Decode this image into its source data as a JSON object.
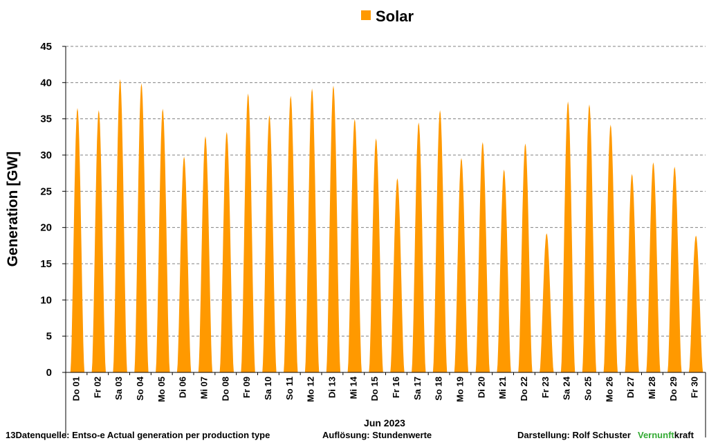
{
  "chart_data": {
    "type": "area",
    "legend": [
      {
        "name": "Solar",
        "color": "#FF9900"
      }
    ],
    "ylabel": "Generation  [GW]",
    "ylim": [
      0,
      45
    ],
    "yticks": [
      0,
      5,
      10,
      15,
      20,
      25,
      30,
      35,
      40,
      45
    ],
    "grid": "horizontal dashed",
    "month_label": "Jun 2023",
    "days": [
      "Do 01",
      "Fr 02",
      "Sa 03",
      "So 04",
      "Mo 05",
      "Di 06",
      "Mi 07",
      "Do 08",
      "Fr 09",
      "Sa 10",
      "So 11",
      "Mo 12",
      "Di 13",
      "Mi 14",
      "Do 15",
      "Fr 16",
      "Sa 17",
      "So 18",
      "Mo 19",
      "Di 20",
      "Mi 21",
      "Do 22",
      "Fr 23",
      "Sa 24",
      "So 25",
      "Mo 26",
      "Di 27",
      "Mi 28",
      "Do 29",
      "Fr 30"
    ],
    "series": [
      {
        "name": "Solar",
        "color": "#FF9900",
        "daily_peaks_gw": [
          36.5,
          36.2,
          40.5,
          39.9,
          36.4,
          29.8,
          32.6,
          33.2,
          38.5,
          35.5,
          38.2,
          39.2,
          39.6,
          35.0,
          32.3,
          26.8,
          34.5,
          36.2,
          29.6,
          31.8,
          28.0,
          31.6,
          19.2,
          37.4,
          37.0,
          34.2,
          27.4,
          29.0,
          28.4,
          18.9
        ]
      }
    ]
  },
  "footer": {
    "datasource": "13Datenquelle: Entso-e  Actual generation per production type",
    "resolution": "Auflösung: Stundenwerte",
    "author": "Darstellung:  Rolf Schuster",
    "brand_green": "Vernunft",
    "brand_black": "kraft"
  }
}
